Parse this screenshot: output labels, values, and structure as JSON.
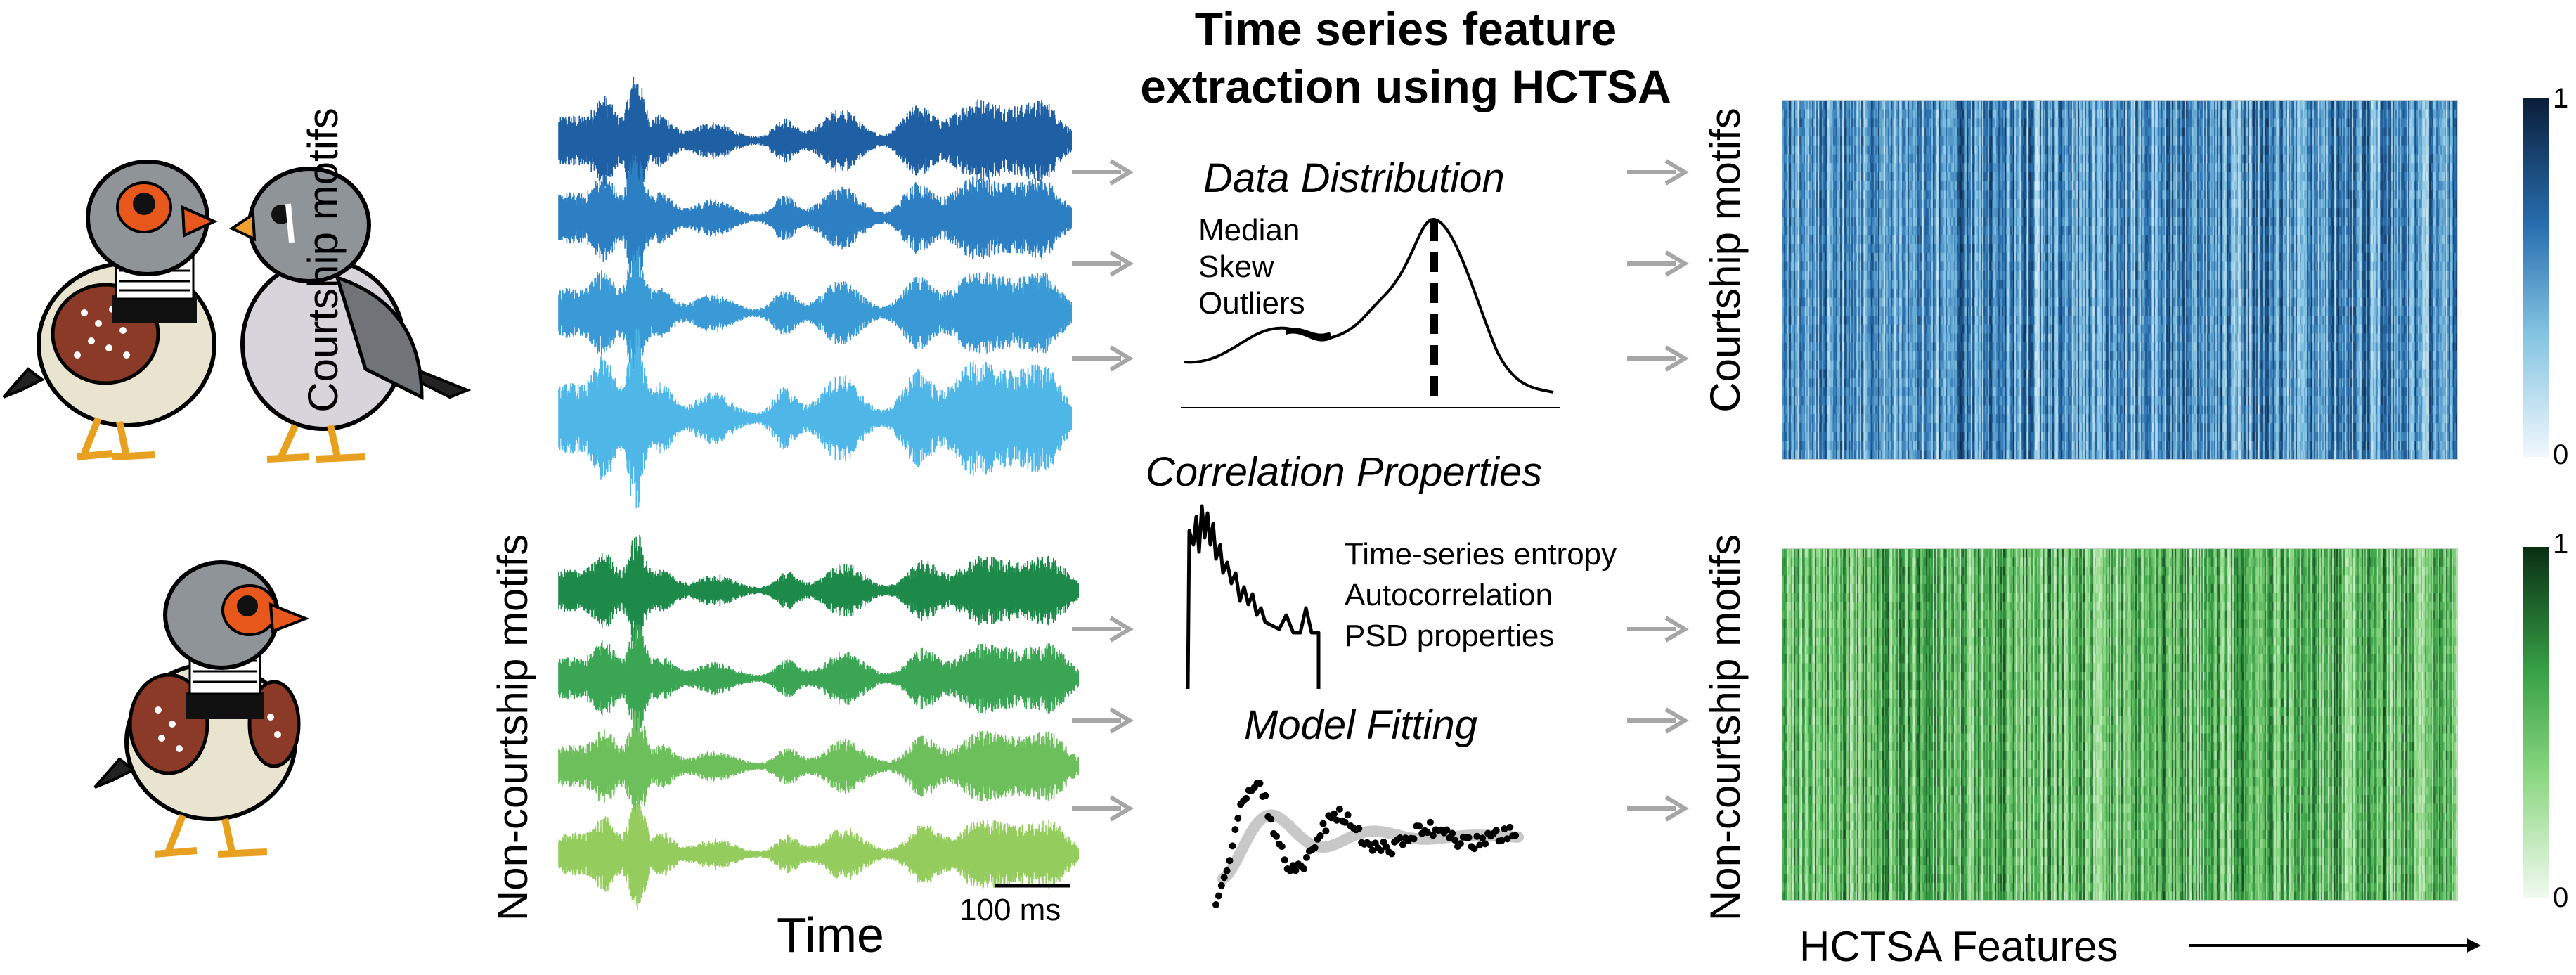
{
  "title": {
    "line1": "Time series feature",
    "line2": "extraction using HCTSA"
  },
  "groups": {
    "courtship": "Courtship motifs",
    "noncourtship": "Non-courtship motifs"
  },
  "time_label": "Time",
  "scale_bar": "100 ms",
  "features": {
    "data_distribution": {
      "heading": "Data Distribution",
      "items": [
        "Median",
        "Skew",
        "Outliers"
      ]
    },
    "correlation": {
      "heading": "Correlation Properties",
      "items": [
        "Time-series entropy",
        "Autocorrelation",
        "PSD properties"
      ]
    },
    "model_fitting": {
      "heading": "Model Fitting"
    }
  },
  "x_axis_label": "HCTSA Features",
  "colorbar": {
    "max": "1",
    "min": "0"
  },
  "colors": {
    "courtship_waves": [
      "#1f5fa3",
      "#2c7fc2",
      "#3a9ad6",
      "#4fb6e8"
    ],
    "noncourtship_waves": [
      "#1e8a4a",
      "#3aa654",
      "#6cbf5a",
      "#94cc5e"
    ],
    "blue_scale": [
      "#f1f8fc",
      "#0a1e3a"
    ],
    "green_scale": [
      "#f2faf0",
      "#0a2f14"
    ],
    "arrow": "#a6a6a6"
  },
  "icons": [
    "zebra-finch-male-icon",
    "zebra-finch-female-icon",
    "arrow-icon"
  ]
}
